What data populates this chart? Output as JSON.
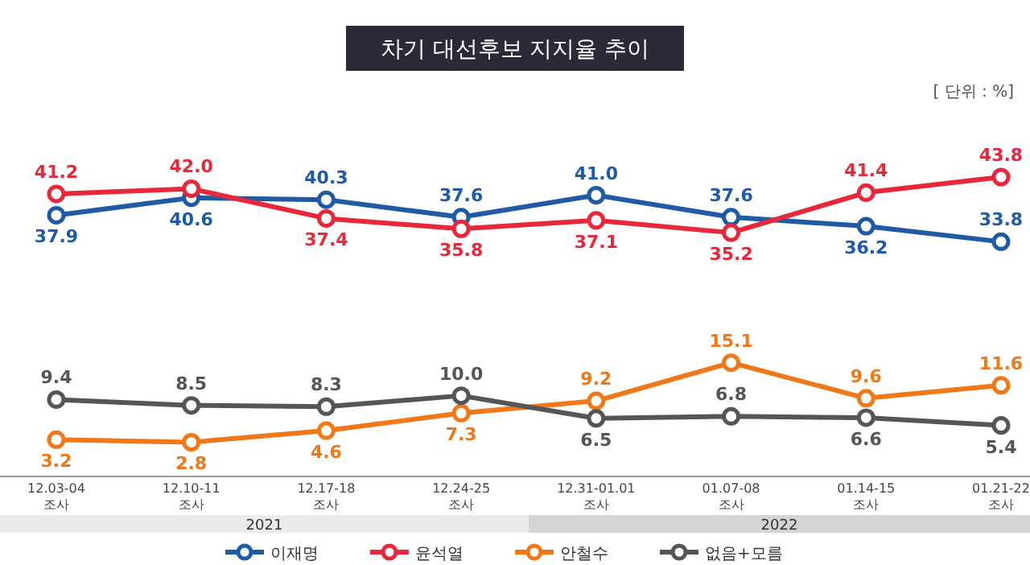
{
  "chart_data": {
    "type": "line",
    "title": "차기 대선후보 지지율 추이",
    "categories": [
      "12.03-04 조사",
      "12.10-11 조사",
      "12.17-18 조사",
      "12.24-25 조사",
      "12.31-01.01 조사",
      "01.07-08 조사",
      "01.14-15 조사",
      "01.21-22 조사"
    ],
    "series": [
      {
        "name": "이재명",
        "color": "#1f5aa6",
        "values": [
          37.9,
          40.6,
          40.3,
          37.6,
          41.0,
          37.6,
          36.2,
          33.8
        ],
        "value_labels": [
          "37.9",
          "40.6",
          "40.3",
          "37.6",
          "41.0",
          "37.6",
          "36.2",
          "33.8"
        ]
      },
      {
        "name": "윤석열",
        "color": "#e6283a",
        "values": [
          41.2,
          42.0,
          37.4,
          35.8,
          37.1,
          35.2,
          41.4,
          43.8
        ],
        "value_labels": [
          "41.2",
          "42.0",
          "37.4",
          "35.8",
          "37.1",
          "35.2",
          "41.4",
          "43.8"
        ]
      },
      {
        "name": "안철수",
        "color": "#f07818",
        "values": [
          3.2,
          2.8,
          4.6,
          7.3,
          9.2,
          15.1,
          9.6,
          11.6
        ],
        "value_labels": [
          "3.2",
          "2.8",
          "4.6",
          "7.3",
          "9.2",
          "15.1",
          "9.6",
          "11.6"
        ]
      },
      {
        "name": "없음+모름",
        "color": "#555555",
        "values": [
          9.4,
          8.5,
          8.3,
          10.0,
          6.5,
          6.8,
          6.6,
          5.4
        ],
        "value_labels": [
          "9.4",
          "8.5",
          "8.3",
          "10.0",
          "6.5",
          "6.8",
          "6.6",
          "5.4"
        ]
      }
    ],
    "marker": "circle",
    "legend": "bottom",
    "annotations": [
      "[ 단위 : %]",
      "2021",
      "2022"
    ]
  }
}
